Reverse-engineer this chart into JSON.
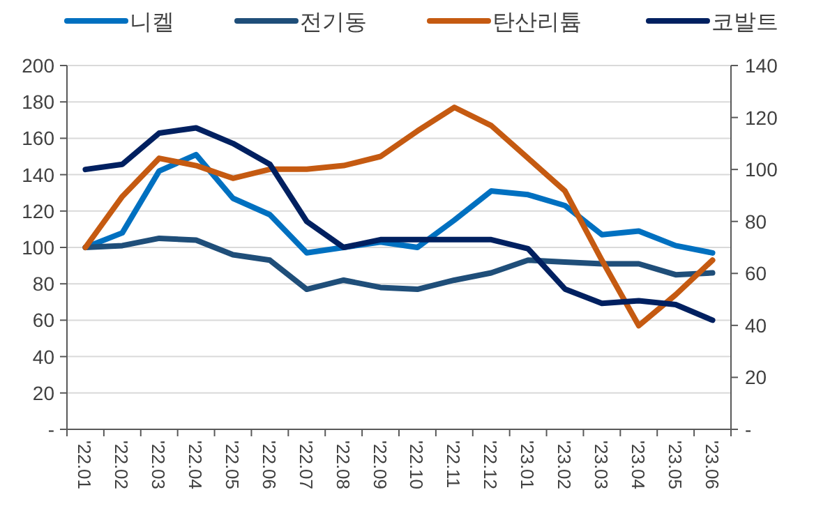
{
  "chart_data": {
    "type": "line",
    "categories": [
      "'22.01",
      "'22.02",
      "'22.03",
      "'22.04",
      "'22.05",
      "'22.06",
      "'22.07",
      "'22.08",
      "'22.09",
      "'22.10",
      "'22.11",
      "'22.12",
      "'23.01",
      "'23.02",
      "'23.03",
      "'23.04",
      "'23.05",
      "'23.06"
    ],
    "series": [
      {
        "name": "니켈",
        "color": "#0070c0",
        "values": [
          100,
          108,
          142,
          151,
          127,
          118,
          97,
          100,
          103,
          100,
          115,
          131,
          129,
          123,
          107,
          109,
          101,
          97
        ]
      },
      {
        "name": "전기동",
        "color": "#1f4e79",
        "values": [
          100,
          101,
          105,
          104,
          96,
          93,
          77,
          82,
          78,
          77,
          82,
          86,
          93,
          92,
          91,
          91,
          85,
          86
        ]
      },
      {
        "name": "탄산리튬",
        "color": "#c55a11",
        "values": [
          100,
          128,
          149,
          145,
          138,
          143,
          143,
          145,
          150,
          164,
          177,
          167,
          149,
          131,
          93,
          57,
          74,
          93
        ]
      },
      {
        "name": "코발트",
        "color": "#002060",
        "axis": "y2",
        "values": [
          100,
          102,
          114,
          116,
          110,
          102,
          80,
          70,
          73,
          73,
          73,
          73,
          69.5,
          54,
          48.5,
          49.5,
          48,
          42
        ]
      }
    ],
    "ylim": [
      0,
      200
    ],
    "yticks": [
      {
        "value": 0,
        "label": "-"
      },
      20,
      40,
      60,
      80,
      100,
      120,
      140,
      160,
      180,
      200
    ],
    "y2lim": [
      0,
      140
    ],
    "y2ticks": [
      {
        "value": 0,
        "label": "-"
      },
      20,
      40,
      60,
      80,
      100,
      120,
      140
    ],
    "grid": "y",
    "legend": "top",
    "marker": "none",
    "line_style": "solid"
  }
}
